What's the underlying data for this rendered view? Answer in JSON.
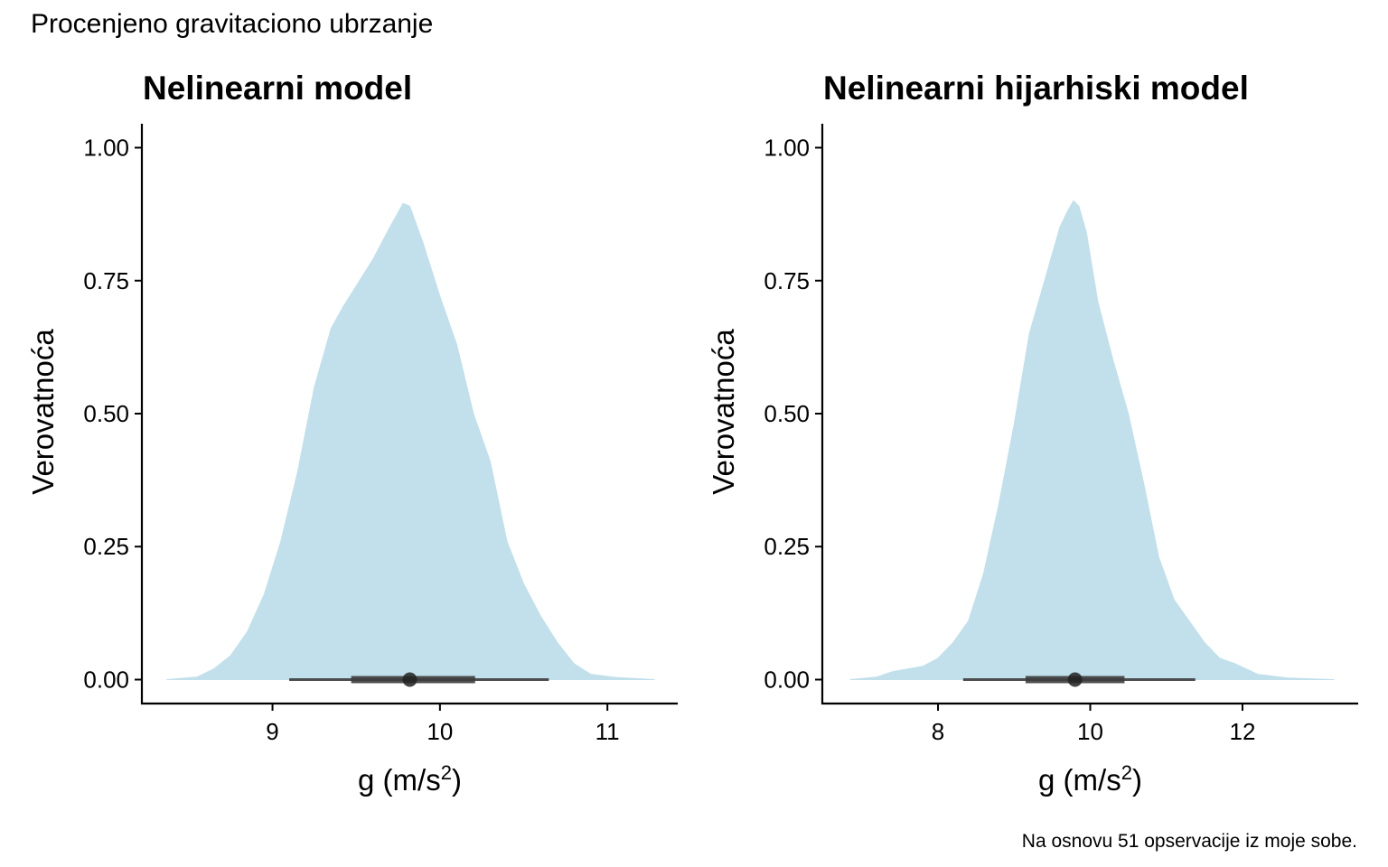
{
  "page": {
    "title": "Procenjeno gravitaciono ubrzanje",
    "caption": "Na osnovu 51 opservacije iz moje sobe."
  },
  "colors": {
    "density_fill": "#c1e0eb",
    "interval": "#3d3d3d",
    "point": "#222222",
    "axis": "#000000"
  },
  "chart_data": [
    {
      "type": "area",
      "title": "Nelinearni model",
      "xlabel": "g (m/s²)",
      "xlabel_base": "g (m/s",
      "xlabel_sup": "2",
      "xlabel_close": ")",
      "ylabel": "Verovatnoća",
      "xlim": [
        8.22,
        11.42
      ],
      "ylim": [
        -0.045,
        1.045
      ],
      "x_ticks": [
        9,
        10,
        11
      ],
      "x_tick_labels": [
        "9",
        "10",
        "11"
      ],
      "y_ticks": [
        0,
        0.25,
        0.5,
        0.75,
        1
      ],
      "y_tick_labels": [
        "0.00",
        "0.25",
        "0.50",
        "0.75",
        "1.00"
      ],
      "grid": false,
      "density": {
        "x": [
          8.37,
          8.55,
          8.65,
          8.75,
          8.85,
          8.95,
          9.05,
          9.15,
          9.25,
          9.35,
          9.42,
          9.5,
          9.6,
          9.7,
          9.78,
          9.82,
          9.9,
          10.0,
          10.1,
          10.2,
          10.3,
          10.4,
          10.5,
          10.6,
          10.7,
          10.8,
          10.9,
          11.05,
          11.28
        ],
        "y": [
          0.0,
          0.005,
          0.02,
          0.045,
          0.09,
          0.16,
          0.26,
          0.39,
          0.55,
          0.66,
          0.7,
          0.74,
          0.79,
          0.85,
          0.895,
          0.89,
          0.82,
          0.72,
          0.63,
          0.5,
          0.41,
          0.26,
          0.18,
          0.12,
          0.07,
          0.03,
          0.01,
          0.004,
          0.0
        ]
      },
      "point_estimate": 9.82,
      "interval_inner": [
        9.47,
        10.21
      ],
      "interval_outer": [
        9.1,
        10.65
      ]
    },
    {
      "type": "area",
      "title": "Nelinearni hijarhiski model",
      "xlabel": "g (m/s²)",
      "xlabel_base": "g (m/s",
      "xlabel_sup": "2",
      "xlabel_close": ")",
      "ylabel": "Verovatnoća",
      "xlim": [
        6.48,
        13.52
      ],
      "ylim": [
        -0.045,
        1.045
      ],
      "x_ticks": [
        8,
        10,
        12
      ],
      "x_tick_labels": [
        "8",
        "10",
        "12"
      ],
      "y_ticks": [
        0,
        0.25,
        0.5,
        0.75,
        1
      ],
      "y_tick_labels": [
        "0.00",
        "0.25",
        "0.50",
        "0.75",
        "1.00"
      ],
      "grid": false,
      "density": {
        "x": [
          6.85,
          7.2,
          7.4,
          7.6,
          7.8,
          8.0,
          8.2,
          8.4,
          8.6,
          8.8,
          9.0,
          9.2,
          9.4,
          9.6,
          9.7,
          9.78,
          9.85,
          9.95,
          10.1,
          10.3,
          10.5,
          10.7,
          10.9,
          11.1,
          11.3,
          11.5,
          11.7,
          11.9,
          12.2,
          12.6,
          13.2
        ],
        "y": [
          0.0,
          0.005,
          0.015,
          0.02,
          0.025,
          0.04,
          0.07,
          0.11,
          0.2,
          0.33,
          0.48,
          0.65,
          0.75,
          0.85,
          0.88,
          0.9,
          0.89,
          0.84,
          0.71,
          0.6,
          0.5,
          0.37,
          0.23,
          0.15,
          0.11,
          0.07,
          0.04,
          0.03,
          0.01,
          0.003,
          0.0
        ]
      },
      "point_estimate": 9.8,
      "interval_inner": [
        9.15,
        10.45
      ],
      "interval_outer": [
        8.33,
        11.38
      ]
    }
  ]
}
